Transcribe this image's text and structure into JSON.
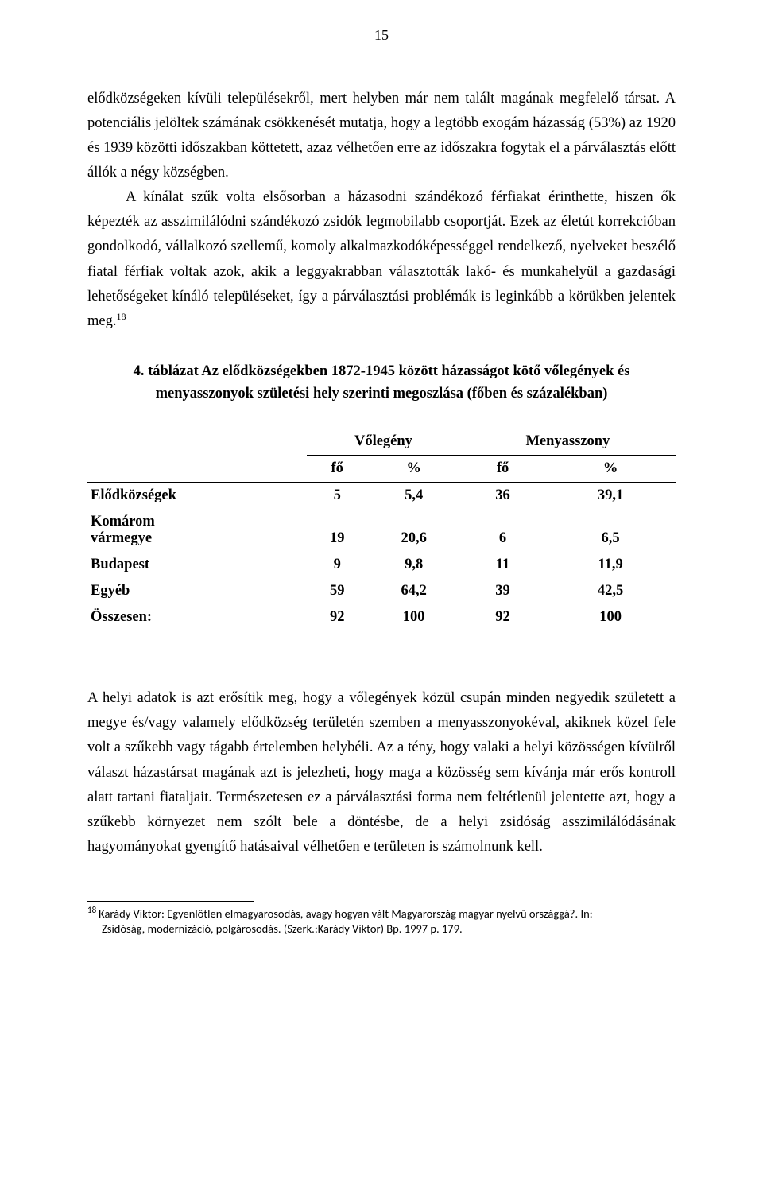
{
  "page_number": "15",
  "para1": "elődközségeken kívüli településekről, mert helyben már nem talált magának megfelelő társat. A potenciális jelöltek számának csökkenését mutatja, hogy a legtöbb exogám házasság (53%) az 1920 és 1939 közötti időszakban köttetett, azaz vélhetően erre az időszakra fogytak el a párválasztás előtt állók a négy községben.",
  "para2_a": "A kínálat szűk volta elsősorban a házasodni szándékozó férfiakat érinthette, hiszen ők képezték az asszimilálódni szándékozó zsidók legmobilabb csoportját. Ezek az életút korrekcióban gondolkodó, vállalkozó szellemű, komoly alkalmazkodóképességgel rendelkező, nyelveket beszélő fiatal férfiak voltak azok, akik a leggyakrabban választották lakó- és munkahelyül a gazdasági lehetőségeket kínáló településeket, így a párválasztási problémák is leginkább a körükben jelentek meg.",
  "para2_sup": "18",
  "table_title": "4.  táblázat Az elődközségekben 1872-1945 között házasságot kötő vőlegények és menyasszonyok születési hely szerinti megoszlása (főben és százalékban)",
  "table": {
    "group_headers": [
      "Vőlegény",
      "Menyasszony"
    ],
    "unit_headers": [
      "fő",
      "%",
      "fő",
      "%"
    ],
    "rows": [
      {
        "label": "Elődközségek",
        "cells": [
          "5",
          "5,4",
          "36",
          "39,1"
        ]
      },
      {
        "label": "Komárom\nvármegye",
        "cells": [
          "19",
          "20,6",
          "6",
          "6,5"
        ]
      },
      {
        "label": "Budapest",
        "cells": [
          "9",
          "9,8",
          "11",
          "11,9"
        ]
      },
      {
        "label": "Egyéb",
        "cells": [
          "59",
          "64,2",
          "39",
          "42,5"
        ]
      },
      {
        "label": "Összesen:",
        "cells": [
          "92",
          "100",
          "92",
          "100"
        ]
      }
    ]
  },
  "para3": "A helyi adatok is azt erősítik meg, hogy a vőlegények közül csupán minden negyedik született a megye és/vagy valamely elődközség területén szemben a menyasszonyokéval, akiknek közel fele volt a szűkebb vagy tágabb értelemben helybéli. Az a tény, hogy valaki a helyi közösségen kívülről választ házastársat magának azt is jelezheti, hogy maga a közösség sem kívánja már erős kontroll alatt tartani fiataljait. Természetesen ez a párválasztási forma nem feltétlenül jelentette azt, hogy a szűkebb környezet nem szólt bele a döntésbe, de a helyi zsidóság asszimilálódásának hagyományokat gyengítő hatásaival vélhetően e területen is számolnunk kell.",
  "footnote": {
    "num": "18",
    "line1": "Karády Viktor: Egyenlőtlen elmagyarosodás, avagy hogyan vált Magyarország magyar nyelvű országgá?. In:",
    "line2": "Zsidóság, modernizáció, polgárosodás. (Szerk.:Karády Viktor) Bp. 1997 p. 179."
  }
}
